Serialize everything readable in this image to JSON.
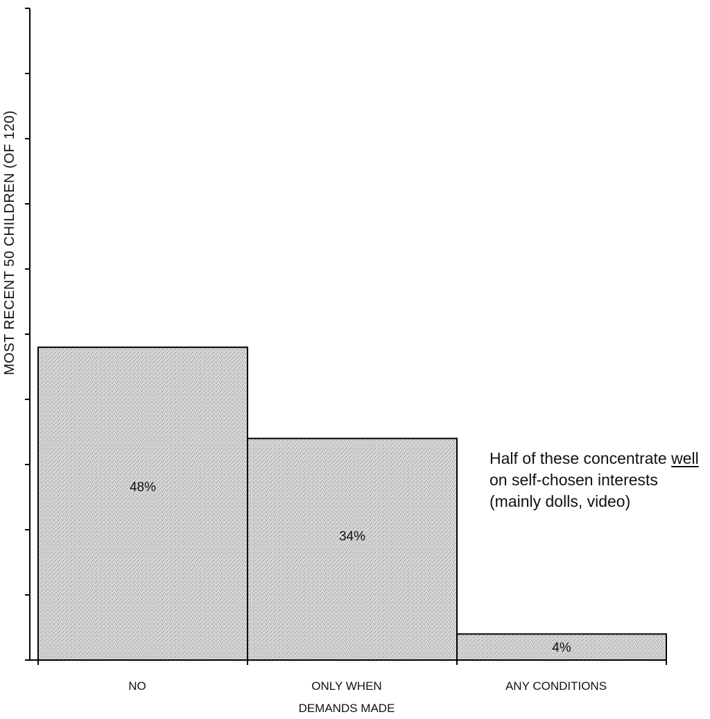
{
  "chart_data": {
    "type": "bar",
    "title": "",
    "xlabel": "",
    "ylabel": "MOST RECENT 50 CHILDREN (OF 120)",
    "categories": [
      [
        "NO"
      ],
      [
        "ONLY WHEN",
        "DEMANDS MADE"
      ],
      [
        "ANY CONDITIONS"
      ]
    ],
    "values": [
      48,
      34,
      4
    ],
    "value_labels": [
      "48%",
      "34%",
      "4%"
    ],
    "unit": "%",
    "ylim": [
      0,
      100
    ],
    "y_ticks": [
      0,
      10,
      20,
      30,
      40,
      50,
      60,
      70,
      80,
      90,
      100
    ],
    "y_tick_labels_shown": false,
    "grid": false,
    "legend": "none",
    "bar_fill_pattern": "stippled-gray",
    "colors": {
      "bar_fill": "#c8c8c8",
      "bar_stroke": "#000000",
      "axis": "#000000",
      "text": "#111111"
    },
    "annotation": {
      "before": "Half of these concentrate ",
      "underlined": "well",
      "after": " on self-chosen interests (mainly dolls, video)"
    }
  }
}
